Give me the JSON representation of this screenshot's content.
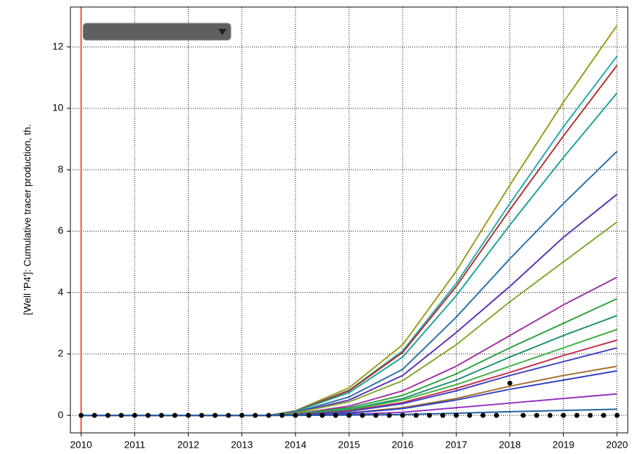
{
  "chart_data": {
    "type": "line",
    "ylabel": "[Well 'P4']:  Cumulative tracer production, th.",
    "x": [
      2010,
      2013.5,
      2014,
      2015,
      2016,
      2017,
      2018,
      2019,
      2020
    ],
    "xlim": [
      2009.8,
      2020.2
    ],
    "xticks": [
      2010,
      2011,
      2012,
      2013,
      2014,
      2015,
      2016,
      2017,
      2018,
      2019,
      2020
    ],
    "ylim": [
      -0.57,
      13.3
    ],
    "yticks": [
      0,
      2,
      4,
      6,
      8,
      10,
      12
    ],
    "grid": true,
    "vline": {
      "x": 2010,
      "color": "#ff2020"
    },
    "series": [
      {
        "color": "#9a9a1a",
        "values": [
          0,
          0,
          0.15,
          0.9,
          2.3,
          4.7,
          7.5,
          10.2,
          12.7
        ]
      },
      {
        "color": "#2aa8a8",
        "values": [
          0,
          0,
          0.14,
          0.82,
          2.1,
          4.3,
          6.9,
          9.4,
          11.7
        ]
      },
      {
        "color": "#b03030",
        "values": [
          0,
          0,
          0.14,
          0.8,
          2.05,
          4.2,
          6.7,
          9.1,
          11.4
        ]
      },
      {
        "color": "#20a090",
        "values": [
          0,
          0,
          0.13,
          0.74,
          1.9,
          3.9,
          6.2,
          8.4,
          10.5
        ]
      },
      {
        "color": "#2a70a8",
        "values": [
          0,
          0,
          0.1,
          0.6,
          1.5,
          3.2,
          5.1,
          6.9,
          8.6
        ]
      },
      {
        "color": "#5a30b0",
        "values": [
          0,
          0,
          0.09,
          0.5,
          1.3,
          2.7,
          4.2,
          5.8,
          7.2
        ]
      },
      {
        "color": "#80a830",
        "values": [
          0,
          0,
          0.08,
          0.44,
          1.13,
          2.3,
          3.7,
          5.0,
          6.3
        ]
      },
      {
        "color": "#a030a0",
        "values": [
          0,
          0,
          0.05,
          0.3,
          0.8,
          1.6,
          2.6,
          3.6,
          4.5
        ]
      },
      {
        "color": "#30a040",
        "values": [
          0,
          0,
          0.04,
          0.25,
          0.65,
          1.35,
          2.2,
          3.0,
          3.8
        ]
      },
      {
        "color": "#209070",
        "values": [
          0,
          0,
          0.03,
          0.2,
          0.55,
          1.15,
          1.9,
          2.6,
          3.25
        ]
      },
      {
        "color": "#40b040",
        "values": [
          0,
          0,
          0.03,
          0.18,
          0.5,
          1.0,
          1.6,
          2.2,
          2.8
        ]
      },
      {
        "color": "#c03050",
        "values": [
          0,
          0,
          0.02,
          0.15,
          0.42,
          0.88,
          1.4,
          1.95,
          2.45
        ]
      },
      {
        "color": "#4040c0",
        "values": [
          0,
          0,
          0.02,
          0.13,
          0.38,
          0.8,
          1.3,
          1.75,
          2.2
        ]
      },
      {
        "color": "#a07030",
        "values": [
          0,
          0,
          0.01,
          0.08,
          0.25,
          0.55,
          0.95,
          1.3,
          1.6
        ]
      },
      {
        "color": "#3040c0",
        "values": [
          0,
          0,
          0.01,
          0.07,
          0.22,
          0.5,
          0.85,
          1.15,
          1.45
        ]
      },
      {
        "color": "#9030c0",
        "values": [
          0,
          0,
          0,
          0.03,
          0.1,
          0.25,
          0.4,
          0.55,
          0.7
        ]
      },
      {
        "color": "#2060a0",
        "values": [
          0,
          0,
          0,
          0.01,
          0.03,
          0.07,
          0.12,
          0.16,
          0.2
        ]
      }
    ],
    "observations": {
      "color": "#000000",
      "x": [
        2010,
        2010.25,
        2010.5,
        2010.75,
        2011,
        2011.25,
        2011.5,
        2011.75,
        2012,
        2012.25,
        2012.5,
        2012.75,
        2013,
        2013.25,
        2013.5,
        2013.75,
        2014,
        2014.25,
        2014.5,
        2014.75,
        2015,
        2015.25,
        2015.5,
        2015.75,
        2016,
        2016.25,
        2016.5,
        2016.75,
        2017,
        2017.25,
        2017.5,
        2017.75,
        2018,
        2018.25,
        2018.5,
        2018.75,
        2019,
        2019.25,
        2019.5,
        2019.75,
        2020
      ],
      "values": [
        0,
        0,
        0,
        0,
        0,
        0,
        0,
        0,
        0,
        0,
        0,
        0,
        0,
        0,
        0,
        0,
        0,
        0,
        0,
        0,
        0,
        0,
        0,
        0,
        0,
        0,
        0,
        0,
        0,
        0,
        0,
        0,
        1.05,
        0,
        0,
        0,
        0,
        0,
        0,
        0,
        0
      ]
    }
  }
}
